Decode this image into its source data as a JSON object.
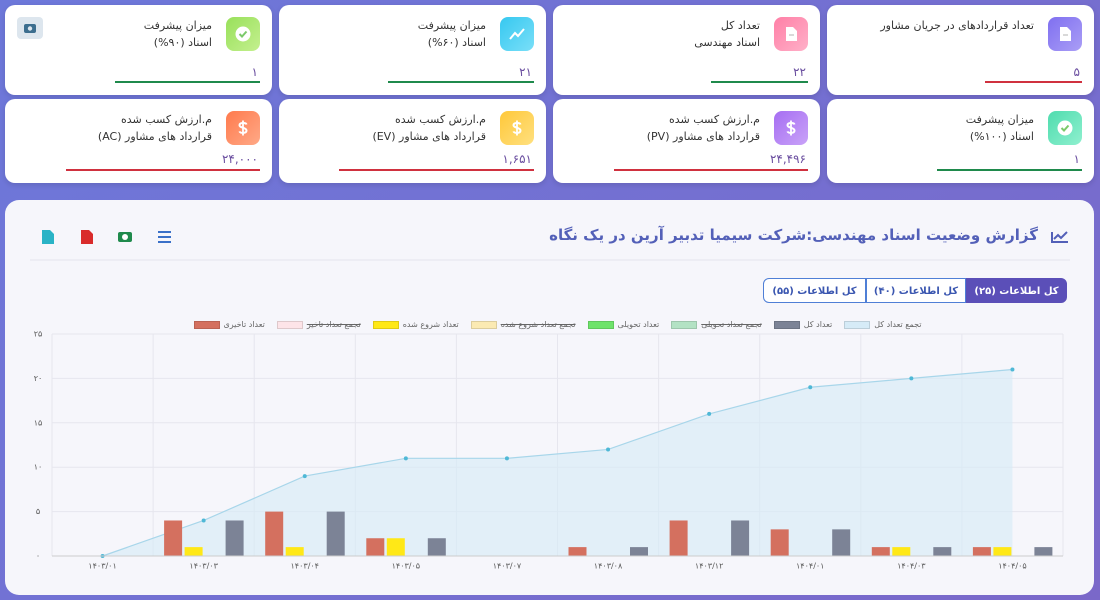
{
  "cards": [
    {
      "title": "تعداد قراردادهای در جریان مشاور",
      "value": "۵"
    },
    {
      "title": "تعداد کل",
      "subtitle": "اسناد مهندسی",
      "value": "۲۲"
    },
    {
      "title": "میزان پیشرفت",
      "subtitle": "اسناد (۶۰%)",
      "value": "۲۱"
    },
    {
      "title": "میزان پیشرفت",
      "subtitle": "اسناد (۹۰%)",
      "value": "۱"
    },
    {
      "title": "میزان پیشرفت",
      "subtitle": "اسناد (۱۰۰%)",
      "value": "۱"
    },
    {
      "title": "م.ارزش کسب شده",
      "subtitle": "قرارداد های مشاور (PV)",
      "value": "۲۴,۴۹۶"
    },
    {
      "title": "م.ارزش کسب شده",
      "subtitle": "قرارداد های مشاور (EV)",
      "value": "۱,۶۵۱"
    },
    {
      "title": "م.ارزش کسب شده",
      "subtitle": "قرارداد های مشاور (AC)",
      "value": "۲۴,۰۰۰"
    }
  ],
  "report": {
    "title": "گزارش وضعیت اسناد مهندسی:شرکت سیمیا تدبیر آرین در یک نگاه",
    "tabs": [
      "کل اطلاعات (۲۵)",
      "کل اطلاعات (۴۰)",
      "کل اطلاعات (۵۵)"
    ]
  },
  "chart_data": {
    "type": "bar",
    "categories": [
      "۱۴۰۳/۰۱",
      "۱۴۰۳/۰۳",
      "۱۴۰۳/۰۴",
      "۱۴۰۳/۰۵",
      "۱۴۰۳/۰۷",
      "۱۴۰۳/۰۸",
      "۱۴۰۳/۱۲",
      "۱۴۰۴/۰۱",
      "۱۴۰۴/۰۳",
      "۱۴۰۴/۰۵"
    ],
    "series": [
      {
        "name": "تجمع تعداد کل",
        "type": "area",
        "color": "#d6ebf7",
        "values": [
          0,
          4,
          9,
          11,
          11,
          12,
          16,
          19,
          20,
          21
        ]
      },
      {
        "name": "تعداد کل",
        "type": "bar",
        "color": "#7c8396",
        "values": [
          0,
          4,
          5,
          2,
          0,
          1,
          4,
          3,
          1,
          1
        ]
      },
      {
        "name": "تجمع تعداد تحویلی",
        "type": "area",
        "color": "#b3e2c4",
        "hidden": true
      },
      {
        "name": "تعداد تحویلی",
        "type": "bar",
        "color": "#6ee36a",
        "values": [
          0,
          0,
          0,
          0,
          0,
          0,
          0,
          0,
          0,
          0
        ]
      },
      {
        "name": "تجمع تعداد شروع شده",
        "type": "area",
        "color": "#fbeab3",
        "hidden": true
      },
      {
        "name": "تعداد شروع شده",
        "type": "bar",
        "color": "#ffe817",
        "values": [
          0,
          1,
          1,
          2,
          0,
          0,
          0,
          0,
          1,
          1
        ]
      },
      {
        "name": "تجمع تعداد تاخیر",
        "type": "area",
        "color": "#fde4e8",
        "hidden": true
      },
      {
        "name": "تعداد تاخیری",
        "type": "bar",
        "color": "#d4705f",
        "values": [
          0,
          4,
          5,
          2,
          0,
          1,
          4,
          3,
          1,
          1
        ]
      }
    ],
    "ylim": [
      0,
      25
    ],
    "yticks": [
      {
        "value": 0,
        "label": "۰"
      },
      {
        "value": 5,
        "label": "۵"
      },
      {
        "value": 10,
        "label": "۱۰"
      },
      {
        "value": 15,
        "label": "۱۵"
      },
      {
        "value": 20,
        "label": "۲۰"
      },
      {
        "value": 25,
        "label": "۲۵"
      }
    ],
    "grid": true
  }
}
